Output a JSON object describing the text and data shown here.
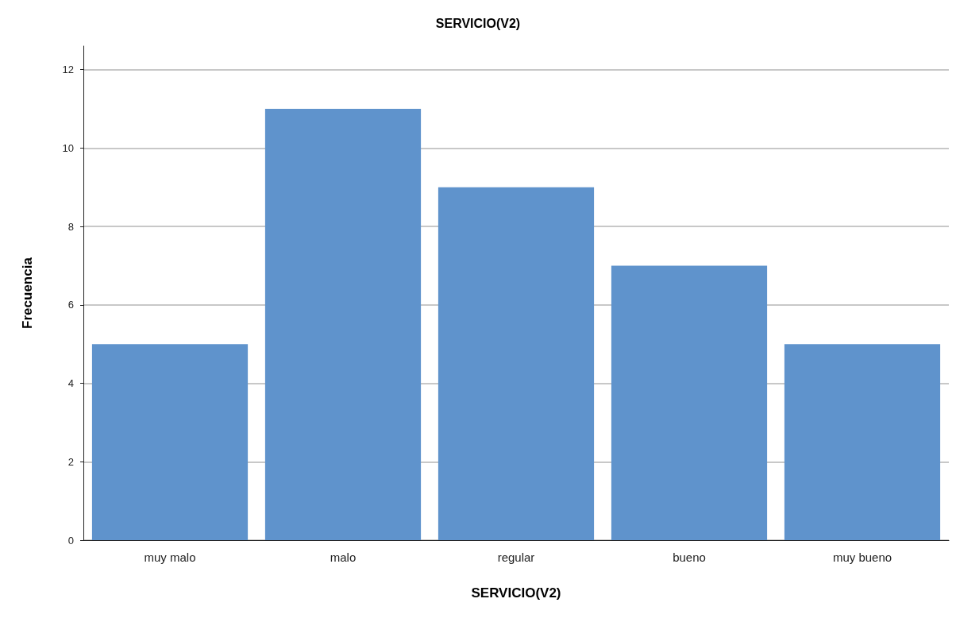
{
  "chart_data": {
    "type": "bar",
    "title": "SERVICIO(V2)",
    "xlabel": "SERVICIO(V2)",
    "ylabel": "Frecuencia",
    "categories": [
      "muy malo",
      "malo",
      "regular",
      "bueno",
      "muy bueno"
    ],
    "values": [
      5,
      11,
      9,
      7,
      5
    ],
    "color": "#5f93cc",
    "ylim": [
      0,
      12.6
    ],
    "yticks": [
      0,
      2,
      4,
      6,
      8,
      10,
      12
    ],
    "grid": "y"
  }
}
